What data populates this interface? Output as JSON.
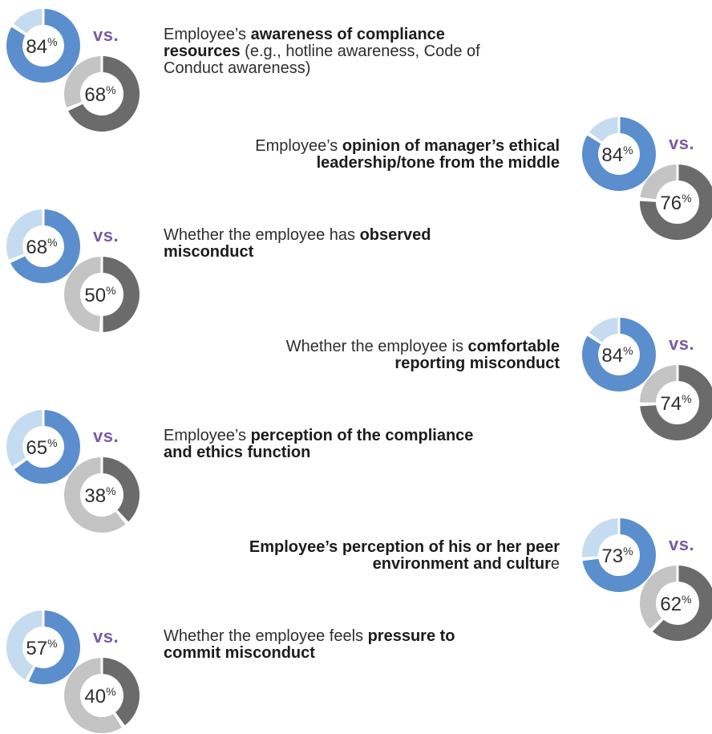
{
  "vs_label": "vs.",
  "colors": {
    "blue": "#5b8ecd",
    "light_blue": "#c5dbef",
    "dark_gray": "#6b6b6b",
    "light_gray": "#c4c4c4",
    "vs": "#7a5aa6",
    "text": "#2e2e2e"
  },
  "rows": [
    {
      "parts": [
        {
          "t": "Employee’s ",
          "b": false
        },
        {
          "t": "awareness of compliance",
          "b": true
        },
        {
          "br": true
        },
        {
          "t": "resources",
          "b": true
        },
        {
          "t": " (e.g., hotline awareness, Code of",
          "b": false
        },
        {
          "br": true
        },
        {
          "t": "Conduct awareness)",
          "b": false
        }
      ]
    },
    {
      "parts": [
        {
          "t": "Employee’s ",
          "b": false
        },
        {
          "t": "opinion of manager’s ethical",
          "b": true
        },
        {
          "br": true
        },
        {
          "t": "leadership/tone from the middle",
          "b": true
        }
      ]
    },
    {
      "parts": [
        {
          "t": "Whether the employee has ",
          "b": false
        },
        {
          "t": "observed",
          "b": true
        },
        {
          "br": true
        },
        {
          "t": "misconduct",
          "b": true
        }
      ]
    },
    {
      "parts": [
        {
          "t": "Whether the employee is ",
          "b": false
        },
        {
          "t": "comfortable",
          "b": true
        },
        {
          "br": true
        },
        {
          "t": "reporting misconduct",
          "b": true
        }
      ]
    },
    {
      "parts": [
        {
          "t": "Employee’s ",
          "b": false
        },
        {
          "t": "perception of the compliance",
          "b": true
        },
        {
          "br": true
        },
        {
          "t": "and ethics function",
          "b": true
        }
      ]
    },
    {
      "parts": [
        {
          "t": "Employee’s perception of his or her peer",
          "b": true
        },
        {
          "br": true
        },
        {
          "t": "environment and cultur",
          "b": true
        },
        {
          "t": "e",
          "b": false
        }
      ]
    },
    {
      "parts": [
        {
          "t": "Whether the employee feels ",
          "b": false
        },
        {
          "t": "pressure to",
          "b": true
        },
        {
          "br": true
        },
        {
          "t": "commit misconduct",
          "b": true
        }
      ]
    }
  ],
  "chart_data": {
    "type": "donut-pairs",
    "categories": [
      "Employee’s awareness of compliance resources (e.g., hotline awareness, Code of Conduct awareness)",
      "Employee’s opinion of manager’s ethical leadership/tone from the middle",
      "Whether the employee has observed misconduct",
      "Whether the employee is comfortable reporting misconduct",
      "Employee’s perception of the compliance and ethics function",
      "Employee’s perception of his or her peer environment and culture",
      "Whether the employee feels pressure to commit misconduct"
    ],
    "series": [
      {
        "values": [
          84,
          84,
          68,
          84,
          65,
          73,
          57
        ],
        "color": "#5b8ecd"
      },
      {
        "values": [
          68,
          76,
          50,
          74,
          38,
          62,
          40
        ],
        "color": "#6b6b6b"
      }
    ],
    "unit": "%"
  }
}
